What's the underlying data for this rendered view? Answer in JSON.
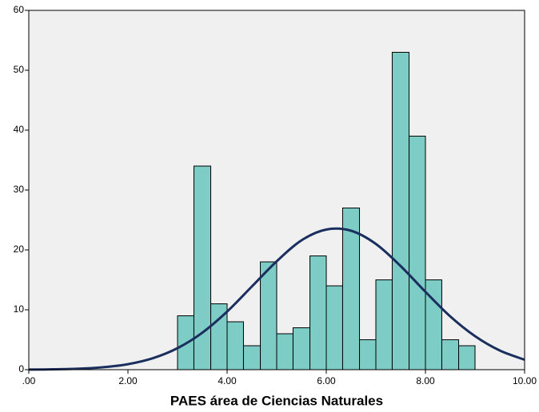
{
  "chart_data": {
    "type": "histogram",
    "x_label": "PAES área de Ciencias Naturales",
    "bins": [
      3,
      3.33,
      3.67,
      4,
      4.33,
      4.67,
      5,
      5.33,
      5.67,
      6,
      6.33,
      6.67,
      7,
      7.33,
      7.67,
      8,
      8.33,
      8.67,
      9
    ],
    "counts": [
      9,
      34,
      11,
      8,
      4,
      18,
      6,
      7,
      19,
      14,
      27,
      5,
      15,
      53,
      39,
      15,
      5,
      4
    ],
    "color": "#7dccc5",
    "edge_color": "#000000",
    "curve": {
      "color": "#1b2f5f",
      "x": [
        0,
        0.5,
        1,
        1.5,
        2,
        2.5,
        3,
        3.5,
        4,
        4.5,
        5,
        5.5,
        6,
        6.5,
        7,
        7.5,
        8,
        8.5,
        9,
        9.5,
        10
      ],
      "y": [
        0.02,
        0.06,
        0.16,
        0.41,
        0.92,
        1.91,
        3.6,
        6.18,
        9.7,
        13.9,
        18.1,
        21.6,
        23.4,
        23.2,
        21.0,
        17.3,
        13.0,
        8.9,
        5.6,
        3.2,
        1.66
      ]
    },
    "xlim": [
      0,
      10
    ],
    "ylim": [
      0,
      60
    ],
    "xticks": [
      {
        "value": 0,
        "label": ".00"
      },
      {
        "value": 2,
        "label": "2.00"
      },
      {
        "value": 4,
        "label": "4.00"
      },
      {
        "value": 6,
        "label": "6.00"
      },
      {
        "value": 8,
        "label": "8.00"
      },
      {
        "value": 10,
        "label": "10.00"
      }
    ],
    "yticks": [
      0,
      10,
      20,
      30,
      40,
      50,
      60
    ],
    "background": "#f0f0f0"
  }
}
